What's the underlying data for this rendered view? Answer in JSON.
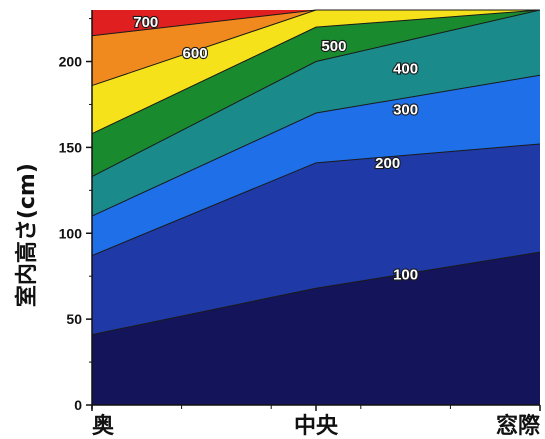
{
  "chart_data": {
    "type": "contour",
    "ylabel": "室内高さ(cm)",
    "xlabel": "",
    "categories": [
      "奥",
      "中央",
      "窓際"
    ],
    "x_positions": [
      0,
      0.5,
      1
    ],
    "ylim": [
      0,
      230
    ],
    "yticks": [
      0,
      50,
      100,
      150,
      200
    ],
    "levels": [
      {
        "value": 100,
        "label": "100",
        "heights": [
          41,
          68,
          89
        ],
        "label_at": [
          0.7,
          76
        ],
        "color": "#1f3aa6"
      },
      {
        "value": 200,
        "label": "200",
        "heights": [
          87,
          141,
          152
        ],
        "label_at": [
          0.66,
          141
        ],
        "color": "#1f6fe8"
      },
      {
        "value": 300,
        "label": "300",
        "heights": [
          110,
          170,
          192
        ],
        "label_at": [
          0.7,
          172
        ],
        "color": "#1a8a8a"
      },
      {
        "value": 400,
        "label": "400",
        "heights": [
          133,
          200,
          230
        ],
        "label_at": [
          0.7,
          196
        ],
        "color": "#1a8a2e"
      },
      {
        "value": 500,
        "label": "500",
        "heights": [
          158,
          220,
          230
        ],
        "label_at": [
          0.54,
          209
        ],
        "color": "#f5e21a"
      },
      {
        "value": 600,
        "label": "600",
        "heights": [
          186,
          230,
          230
        ],
        "label_at": [
          0.23,
          205
        ],
        "color": "#f08a1e"
      },
      {
        "value": 700,
        "label": "700",
        "heights": [
          215,
          230,
          230
        ],
        "label_at": [
          0.12,
          223
        ],
        "color": "#e02020"
      }
    ],
    "base_color": "#14145a",
    "grid": false
  }
}
